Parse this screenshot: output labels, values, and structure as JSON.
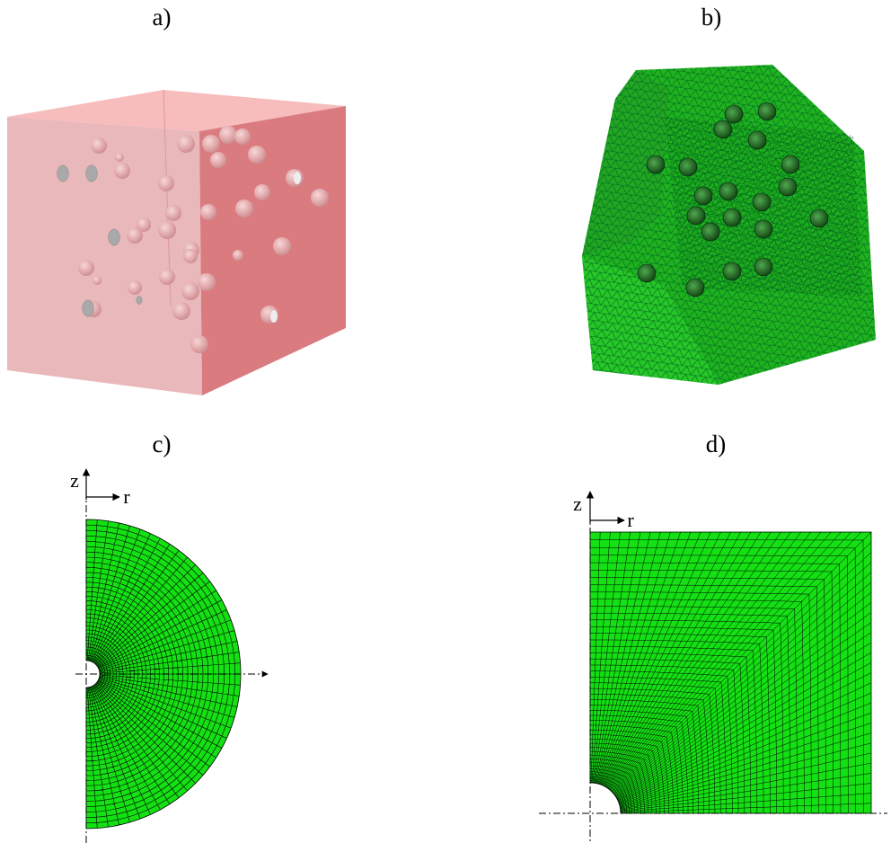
{
  "panels": [
    {
      "label": "a)"
    },
    {
      "label": "b)"
    },
    {
      "label": "c)",
      "axis_z": "z",
      "axis_r": "r"
    },
    {
      "label": "d)",
      "axis_z": "z",
      "axis_r": "r"
    }
  ]
}
